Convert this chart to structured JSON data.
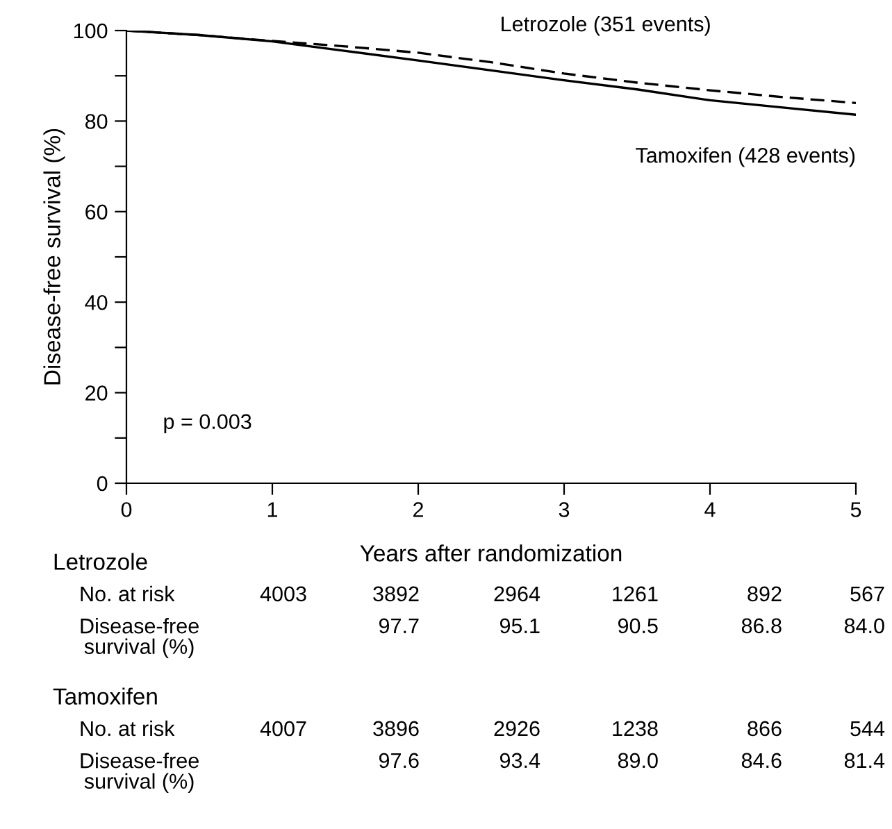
{
  "chart_data": {
    "type": "line",
    "xlabel": "Years after randomization",
    "ylabel": "Disease-free survival (%)",
    "x": [
      0,
      0.5,
      1,
      1.5,
      2,
      2.5,
      3,
      3.5,
      4,
      4.5,
      5
    ],
    "series": [
      {
        "name": "Letrozole (351 events)",
        "color": "#000000",
        "line_style": "dashed",
        "values": [
          100,
          99.0,
          97.7,
          96.5,
          95.1,
          93.0,
          90.5,
          88.5,
          86.8,
          85.3,
          84.0
        ]
      },
      {
        "name": "Tamoxifen (428 events)",
        "color": "#000000",
        "line_style": "solid",
        "values": [
          100,
          99.0,
          97.6,
          95.5,
          93.4,
          91.2,
          89.0,
          87.0,
          84.6,
          83.0,
          81.4
        ]
      }
    ],
    "xlim": [
      0,
      5
    ],
    "xticks": [
      0,
      1,
      2,
      3,
      4,
      5
    ],
    "ylim": [
      0,
      100
    ],
    "yticks": [
      0,
      {
        "value": 10,
        "label": null
      },
      20,
      {
        "value": 30,
        "label": null
      },
      40,
      {
        "value": 50,
        "label": null
      },
      60,
      {
        "value": 70,
        "label": null
      },
      80,
      {
        "value": 90,
        "label": null
      },
      100
    ],
    "grid": false,
    "legend": false,
    "marker": "none",
    "annotations": [
      "p = 0.003",
      "Letrozole",
      "No. at risk",
      "4003",
      "3892",
      "2964",
      "1261",
      "892",
      "567",
      "Disease-free\nsurvival (%)",
      "97.7",
      "95.1",
      "90.5",
      "86.8",
      "84.0",
      "Tamoxifen",
      "No. at risk",
      "4007",
      "3896",
      "2926",
      "1238",
      "866",
      "544",
      "Disease-free\nsurvival (%)",
      "97.6",
      "93.4",
      "89.0",
      "84.6",
      "81.4"
    ]
  }
}
